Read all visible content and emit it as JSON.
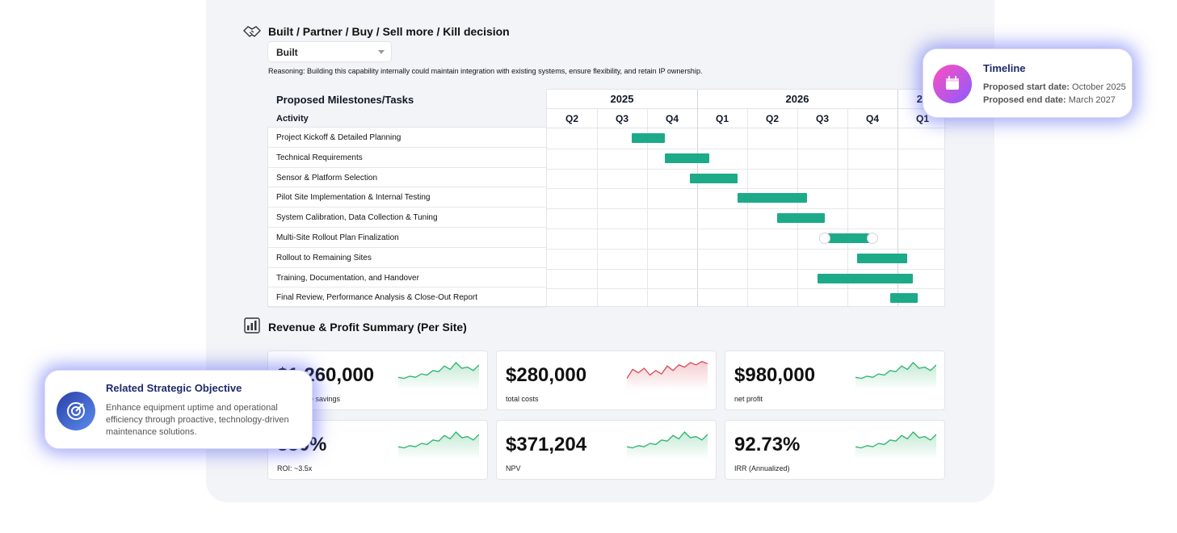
{
  "decision": {
    "title": "Built / Partner / Buy / Sell more / Kill decision",
    "selected": "Built",
    "reasoning": "Reasoning: Building this capability internally could maintain integration with existing systems, ensure flexibility, and retain IP ownership."
  },
  "gantt": {
    "title": "Proposed Milestones/Tasks",
    "activity_header": "Activity",
    "years": [
      "2025",
      "2026",
      "20"
    ],
    "quarters": [
      "Q2",
      "Q3",
      "Q4",
      "Q1",
      "Q2",
      "Q3",
      "Q4",
      "Q1"
    ],
    "tasks": [
      "Project Kickoff & Detailed Planning",
      "Technical Requirements",
      "Sensor & Platform Selection",
      "Pilot Site Implementation & Internal Testing",
      "System Calibration, Data Collection & Tuning",
      "Multi-Site Rollout Plan Finalization",
      "Rollout to Remaining Sites",
      "Training, Documentation, and Handover",
      "Final Review, Performance Analysis & Close-Out Report"
    ],
    "bars": [
      {
        "start": 1.7,
        "end": 2.35
      },
      {
        "start": 2.35,
        "end": 3.25
      },
      {
        "start": 2.85,
        "end": 3.8
      },
      {
        "start": 3.8,
        "end": 5.2
      },
      {
        "start": 4.6,
        "end": 5.55
      },
      {
        "start": 5.55,
        "end": 6.5,
        "handles": true
      },
      {
        "start": 6.2,
        "end": 7.2
      },
      {
        "start": 5.4,
        "end": 7.3
      },
      {
        "start": 6.85,
        "end": 7.4
      }
    ]
  },
  "revenue": {
    "title": "Revenue & Profit Summary (Per Site)",
    "cards": [
      {
        "value": "$1,260,000",
        "label": "Cumulative savings",
        "trend": "up",
        "color": "#2db36a"
      },
      {
        "value": "$280,000",
        "label": "total costs",
        "trend": "down",
        "color": "#d94a57"
      },
      {
        "value": "$980,000",
        "label": "net profit",
        "trend": "up",
        "color": "#2db36a"
      },
      {
        "value": "350%",
        "label": "ROI: ~3.5x",
        "trend": "up",
        "color": "#2db36a"
      },
      {
        "value": "$371,204",
        "label": "NPV",
        "trend": "up",
        "color": "#2db36a"
      },
      {
        "value": "92.73%",
        "label": "IRR (Annualized)",
        "trend": "up",
        "color": "#2db36a"
      }
    ]
  },
  "timeline_card": {
    "title": "Timeline",
    "start_label": "Proposed start date:",
    "start_value": "October 2025",
    "end_label": "Proposed end date:",
    "end_value": "March 2027",
    "icon": "calendar-icon"
  },
  "objective_card": {
    "title": "Related Strategic Objective",
    "text": "Enhance equipment uptime and operational efficiency through proactive, technology-driven maintenance solutions.",
    "icon": "target-icon"
  }
}
